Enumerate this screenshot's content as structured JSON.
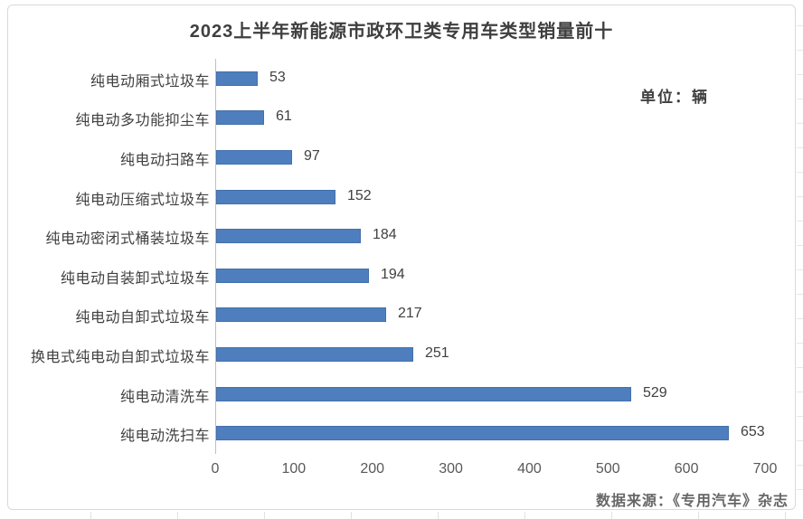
{
  "title": "2023上半年新能源市政环卫类专用车类型销量前十",
  "unit_label": "单位：辆",
  "source_label": "数据来源：《专用汽车》杂志",
  "colors": {
    "bar": "#4E7EBE",
    "bar_edge": "#3E6CA8",
    "title_text": "#3F3F3F",
    "body_text": "#404040",
    "tick_text": "#595959",
    "axis_line": "#BFBFBF",
    "frame_border": "#D9D9D9",
    "background": "#FFFFFF"
  },
  "chart_data": {
    "type": "bar",
    "orientation": "horizontal",
    "title": "2023上半年新能源市政环卫类专用车类型销量前十",
    "unit": "辆",
    "categories": [
      "纯电动厢式垃圾车",
      "纯电动多功能抑尘车",
      "纯电动扫路车",
      "纯电动压缩式垃圾车",
      "纯电动密闭式桶装垃圾车",
      "纯电动自装卸式垃圾车",
      "纯电动自卸式垃圾车",
      "换电式纯电动自卸式垃圾车",
      "纯电动清洗车",
      "纯电动洗扫车"
    ],
    "values": [
      53,
      61,
      97,
      152,
      184,
      194,
      217,
      251,
      529,
      653
    ],
    "data_labels_visible": true,
    "xlim": [
      0,
      700
    ],
    "x_ticks": [
      0,
      100,
      200,
      300,
      400,
      500,
      600,
      700
    ],
    "grid": false,
    "legend": false,
    "source": "数据来源：《专用汽车》杂志"
  }
}
